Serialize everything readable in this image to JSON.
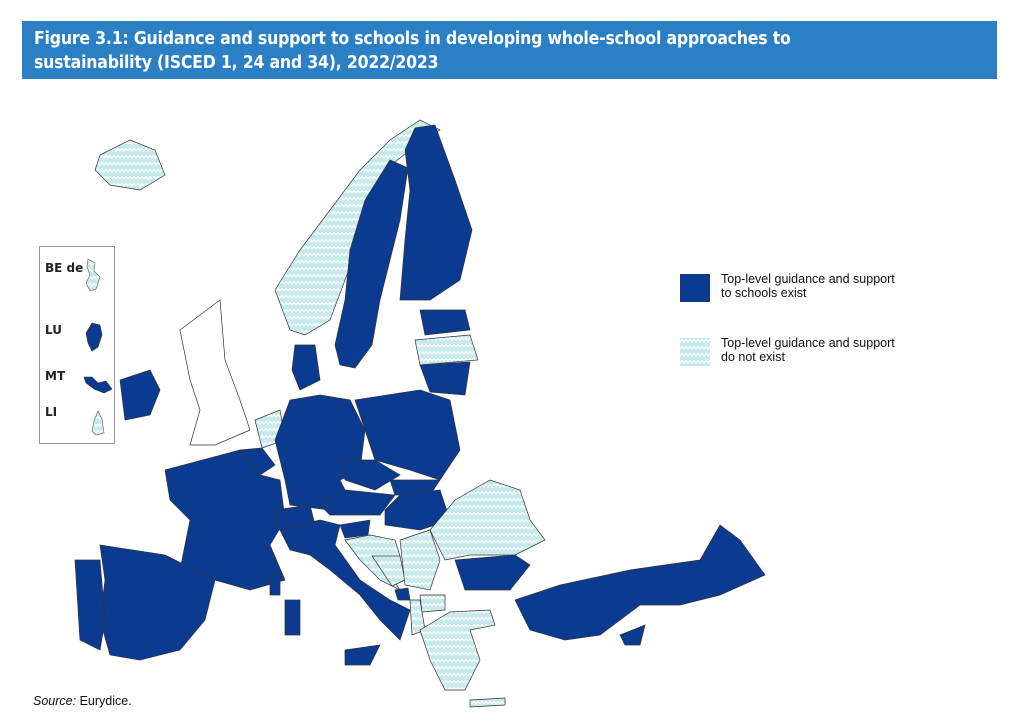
{
  "figure": {
    "title_line1": "Figure 3.1: Guidance and support to schools in developing whole-school approaches to",
    "title_line2": "sustainability (ISCED 1, 24 and 34), 2022/2023"
  },
  "legend": [
    {
      "label_line1": "Top-level guidance and support",
      "label_line2": "to schools exist",
      "color": "#0b3b91",
      "pattern": "solid"
    },
    {
      "label_line1": "Top-level guidance and support",
      "label_line2": "do not exist",
      "color": "#c6eaec",
      "pattern": "zigzag"
    }
  ],
  "inset": [
    {
      "label": "BE de",
      "status": "do not exist"
    },
    {
      "label": "LU",
      "status": "exist"
    },
    {
      "label": "MT",
      "status": "exist"
    },
    {
      "label": "LI",
      "status": "do not exist"
    }
  ],
  "source": {
    "prefix": "Source:",
    "text": " Eurydice."
  },
  "colors": {
    "header": "#2b80c5",
    "exist": "#0b3b91",
    "not_exist": "#c6eaec",
    "no_data": "#ffffff"
  }
}
